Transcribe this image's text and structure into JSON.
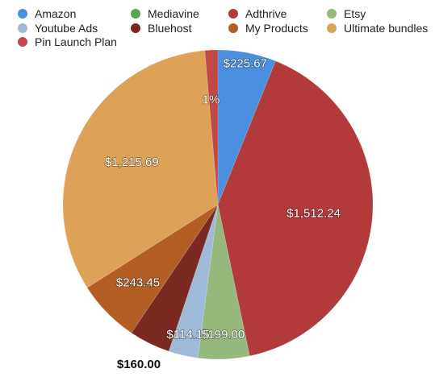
{
  "chart_data": {
    "type": "pie",
    "title": "",
    "legend_position": "top",
    "slices": [
      {
        "name": "Amazon",
        "value": 225.67,
        "label": "$225.67",
        "color": "#4a8fe0"
      },
      {
        "name": "Mediavine",
        "value": 0,
        "label": "",
        "color": "#58a852"
      },
      {
        "name": "Adthrive",
        "value": 1512.24,
        "label": "$1,512.24",
        "color": "#b33a3a"
      },
      {
        "name": "Etsy",
        "value": 199.0,
        "label": "$199.00",
        "color": "#97b87c"
      },
      {
        "name": "Youtube Ads",
        "value": 114.15,
        "label": "$114.15",
        "color": "#9fbad9"
      },
      {
        "name": "Bluehost",
        "value": 160.0,
        "label": "$160.00",
        "color": "#7a2a22"
      },
      {
        "name": "My Products",
        "value": 243.45,
        "label": "$243.45",
        "color": "#b25e25"
      },
      {
        "name": "Ultimate bundles",
        "value": 1215.69,
        "label": "$1,215.69",
        "color": "#dda257"
      },
      {
        "name": "Pin Launch Plan",
        "value": 50,
        "label": "1%",
        "color": "#c24848"
      }
    ]
  }
}
